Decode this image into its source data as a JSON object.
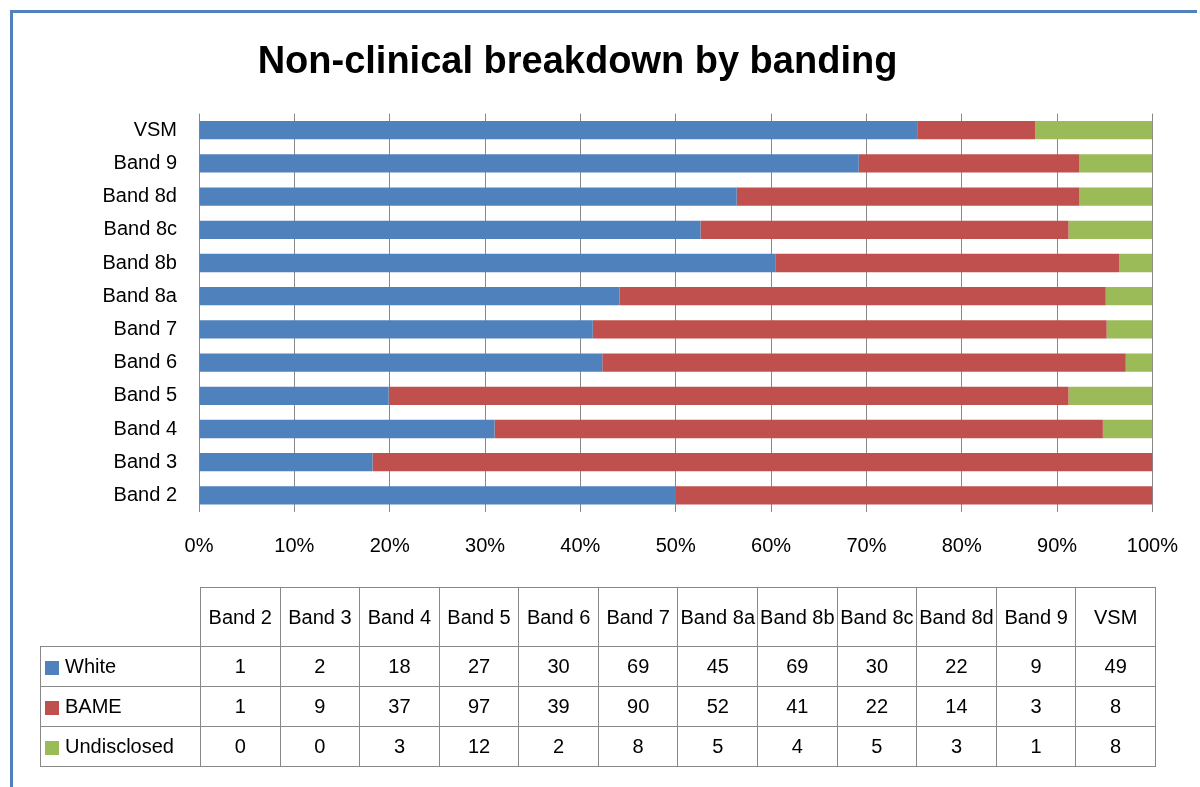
{
  "chart_data": [
    {
      "type": "bar",
      "orientation": "horizontal",
      "stacked": true,
      "title": "Non-clinical breakdown by banding",
      "categories": [
        "VSM",
        "Band 9",
        "Band 8d",
        "Band 8c",
        "Band 8b",
        "Band 8a",
        "Band 7",
        "Band 6",
        "Band 5",
        "Band 4",
        "Band 3",
        "Band 2"
      ],
      "series": [
        {
          "color": "#4f81bd",
          "values": [
            75.4,
            69.2,
            56.4,
            52.6,
            60.5,
            44.1,
            41.3,
            42.3,
            19.9,
            31.0,
            18.2,
            50
          ]
        },
        {
          "color": "#c0504d",
          "values": [
            12.3,
            23.1,
            35.9,
            38.6,
            36.0,
            51.0,
            53.9,
            54.9,
            71.3,
            63.8,
            81.8,
            50
          ]
        },
        {
          "color": "#9bbb59",
          "values": [
            12.3,
            7.7,
            7.7,
            8.8,
            3.5,
            4.9,
            4.8,
            2.8,
            8.8,
            5.2,
            0,
            0
          ]
        }
      ],
      "xlim": [
        0,
        100
      ],
      "xticks": [
        {
          "value": 0,
          "label": "0%"
        },
        {
          "value": 10,
          "label": "10%"
        },
        {
          "value": 20,
          "label": "20%"
        },
        {
          "value": 30,
          "label": "30%"
        },
        {
          "value": 40,
          "label": "40%"
        },
        {
          "value": 50,
          "label": "50%"
        },
        {
          "value": 60,
          "label": "60%"
        },
        {
          "value": 70,
          "label": "70%"
        },
        {
          "value": 80,
          "label": "80%"
        },
        {
          "value": 90,
          "label": "90%"
        },
        {
          "value": 100,
          "label": "100%"
        }
      ],
      "grid": "x"
    },
    {
      "type": "other",
      "categories": [
        "Band 2",
        "Band 3",
        "Band 4",
        "Band 5",
        "Band 6",
        "Band 7",
        "Band 8a",
        "Band 8b",
        "Band 8c",
        "Band 8d",
        "Band 9",
        "VSM"
      ],
      "series": [
        {
          "name": "White",
          "color": "#4f81bd",
          "values": [
            1,
            2,
            18,
            27,
            30,
            69,
            45,
            69,
            30,
            22,
            9,
            49
          ]
        },
        {
          "name": "BAME",
          "color": "#c0504d",
          "values": [
            1,
            9,
            37,
            97,
            39,
            90,
            52,
            41,
            22,
            14,
            3,
            8
          ]
        },
        {
          "name": "Undisclosed",
          "color": "#9bbb59",
          "values": [
            0,
            0,
            3,
            12,
            2,
            8,
            5,
            4,
            5,
            3,
            1,
            8
          ]
        }
      ],
      "data_labels": true,
      "legend": "left"
    }
  ]
}
